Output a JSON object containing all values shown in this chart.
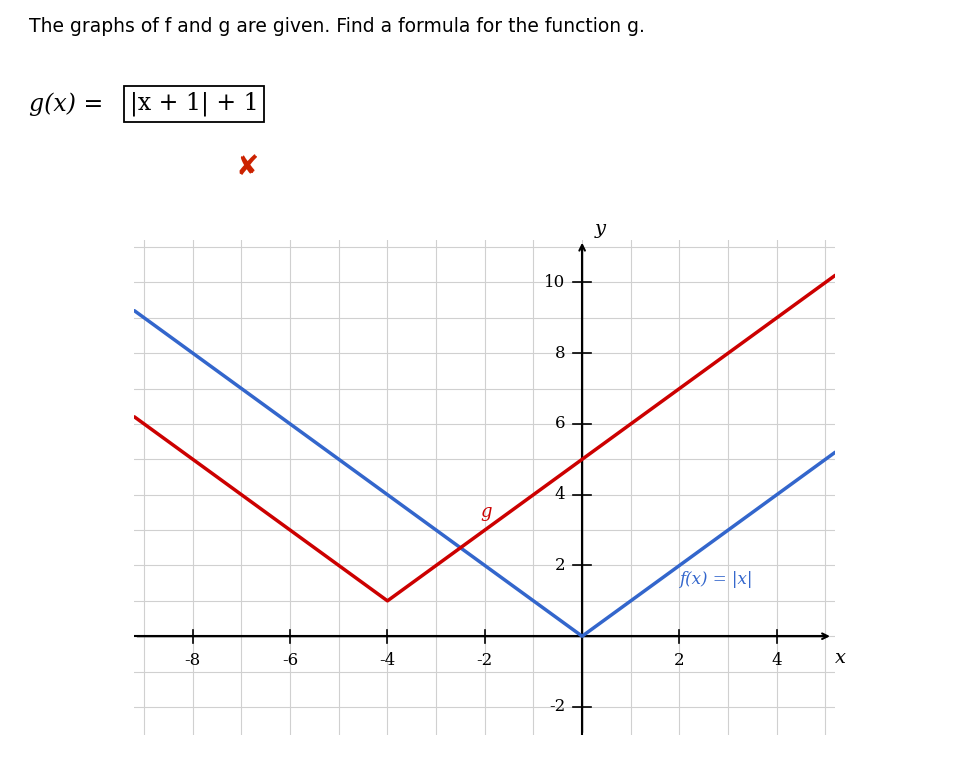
{
  "title_text": "The graphs of f and g are given. Find a formula for the function g.",
  "formula_left": "g(x) = ",
  "formula_box": "|x + 1| + 1",
  "f_label": "f(x) = |x|",
  "g_label": "g",
  "f_color": "#3366cc",
  "g_color": "#cc0000",
  "wrong_color": "#cc2200",
  "x_min": -9.2,
  "x_max": 5.2,
  "y_min": -2.8,
  "y_max": 11.2,
  "x_axis_min": -9.2,
  "x_axis_max": 5.0,
  "y_axis_min": -2.8,
  "y_axis_max": 11.0,
  "x_ticks": [
    -8,
    -6,
    -4,
    -2,
    2,
    4
  ],
  "y_ticks": [
    -2,
    2,
    4,
    6,
    8,
    10
  ],
  "f_vertex_x": 0,
  "f_vertex_y": 0,
  "g_vertex_x": -4,
  "g_vertex_y": 1,
  "background_color": "#ffffff",
  "grid_color": "#d0d0d0",
  "axis_color": "#000000"
}
